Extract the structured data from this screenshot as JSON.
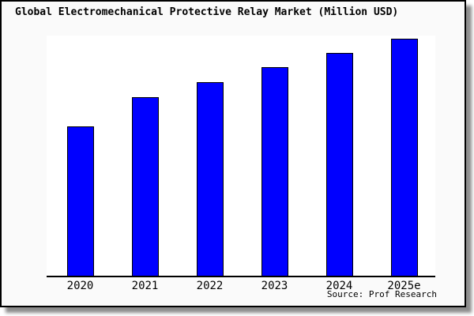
{
  "card": {
    "bg_color": "#fafafa",
    "border_color": "#000000",
    "plot_bg_color": "#ffffff"
  },
  "chart_data": {
    "type": "bar",
    "title": "Global Electromechanical Protective Relay Market (Million USD)",
    "categories": [
      "2020",
      "2021",
      "2022",
      "2023",
      "2024",
      "2025e"
    ],
    "values": [
      63,
      75.3,
      81.7,
      88,
      94,
      100
    ],
    "units": "relative height, % of 2025e bar (no value axis shown in chart)",
    "xlabel": "",
    "ylabel": "",
    "ylim": [
      0,
      100
    ],
    "grid": false,
    "legend": false,
    "value_axis_visible": false,
    "bar_color": "#0000ff",
    "bar_border_color": "#000000",
    "axis_color": "#000000",
    "source_note": "Source: Prof Research"
  }
}
